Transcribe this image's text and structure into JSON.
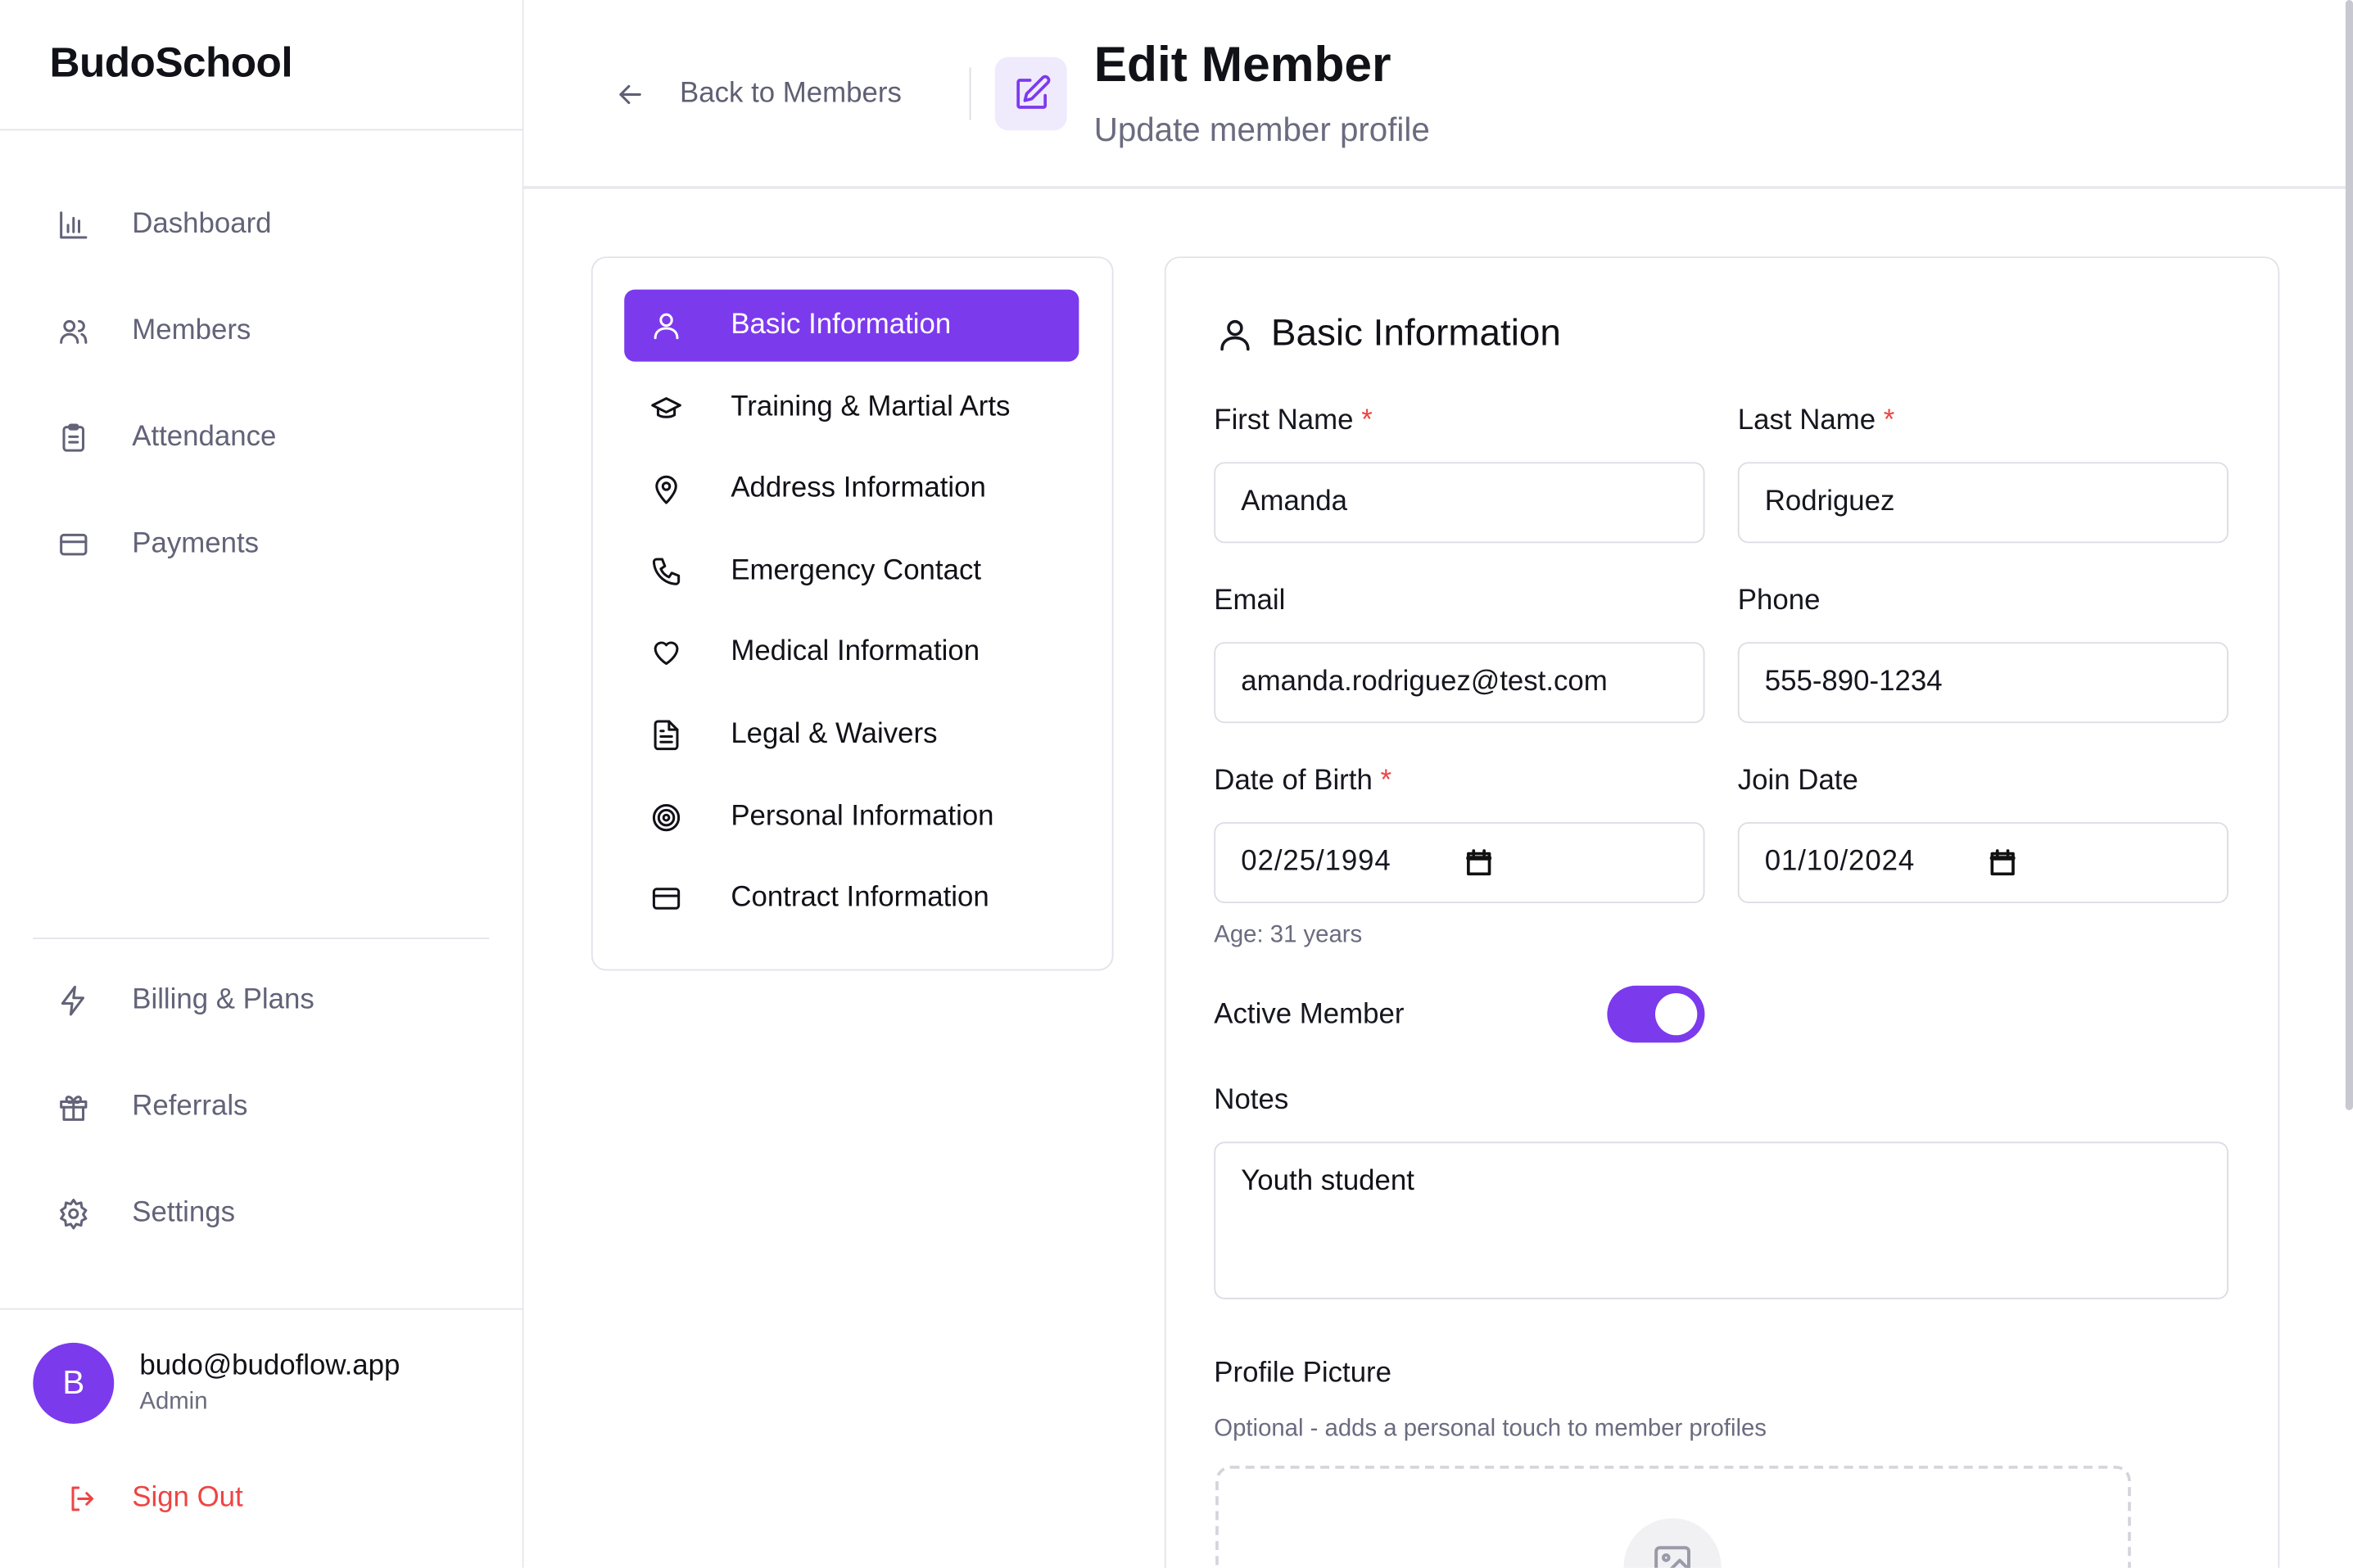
{
  "app": {
    "name": "BudoSchool"
  },
  "sidebar": {
    "items": [
      {
        "label": "Dashboard",
        "icon": "bar-chart-icon"
      },
      {
        "label": "Members",
        "icon": "users-icon"
      },
      {
        "label": "Attendance",
        "icon": "clipboard-icon"
      },
      {
        "label": "Payments",
        "icon": "credit-card-icon"
      }
    ],
    "secondary": [
      {
        "label": "Billing & Plans",
        "icon": "lightning-icon"
      },
      {
        "label": "Referrals",
        "icon": "gift-icon"
      },
      {
        "label": "Settings",
        "icon": "gear-icon"
      }
    ],
    "user": {
      "initial": "B",
      "email": "budo@budoflow.app",
      "role": "Admin"
    },
    "sign_out": "Sign Out"
  },
  "header": {
    "back_label": "Back to Members",
    "title": "Edit Member",
    "subtitle": "Update member profile"
  },
  "sections": [
    {
      "label": "Basic Information",
      "icon": "user-icon",
      "active": true
    },
    {
      "label": "Training & Martial Arts",
      "icon": "graduation-cap-icon"
    },
    {
      "label": "Address Information",
      "icon": "map-pin-icon"
    },
    {
      "label": "Emergency Contact",
      "icon": "phone-icon"
    },
    {
      "label": "Medical Information",
      "icon": "heart-icon"
    },
    {
      "label": "Legal & Waivers",
      "icon": "document-icon"
    },
    {
      "label": "Personal Information",
      "icon": "target-icon"
    },
    {
      "label": "Contract Information",
      "icon": "credit-card-icon"
    }
  ],
  "form": {
    "title": "Basic Information",
    "first_name": {
      "label": "First Name",
      "value": "Amanda",
      "required": "*"
    },
    "last_name": {
      "label": "Last Name",
      "value": "Rodriguez",
      "required": "*"
    },
    "email": {
      "label": "Email",
      "value": "amanda.rodriguez@test.com"
    },
    "phone": {
      "label": "Phone",
      "value": "555-890-1234"
    },
    "dob": {
      "label": "Date of Birth",
      "value": "02/25/1994",
      "required": "*"
    },
    "join_date": {
      "label": "Join Date",
      "value": "01/10/2024"
    },
    "age": "Age: 31 years",
    "active": {
      "label": "Active Member",
      "on": true
    },
    "notes": {
      "label": "Notes",
      "value": "Youth student"
    },
    "profile_picture": {
      "label": "Profile Picture",
      "hint": "Optional - adds a personal touch to member profiles"
    }
  },
  "colors": {
    "accent": "#7c3aed",
    "accent_soft": "#f0eafd",
    "danger": "#ef4444"
  }
}
